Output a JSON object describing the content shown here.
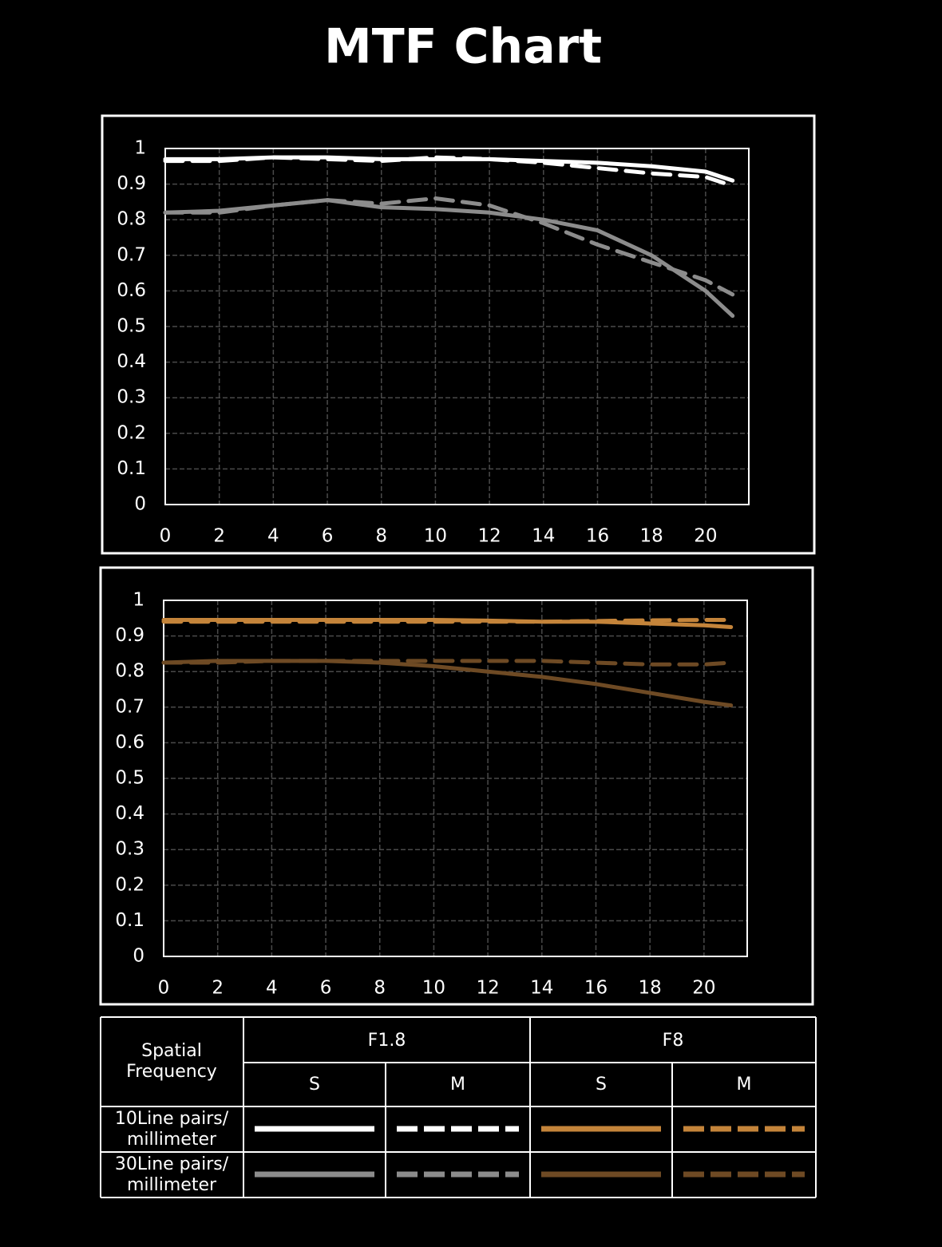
{
  "title": "MTF Chart",
  "chart_data": [
    {
      "type": "line",
      "x": [
        0,
        2,
        4,
        6,
        8,
        10,
        12,
        14,
        16,
        18,
        20,
        21
      ],
      "xlim": [
        0,
        21.6
      ],
      "ylim": [
        0,
        1
      ],
      "xticks": [
        0,
        2,
        4,
        6,
        8,
        10,
        12,
        14,
        16,
        18,
        20
      ],
      "yticks": [
        0,
        0.1,
        0.2,
        0.3,
        0.4,
        0.5,
        0.6,
        0.7,
        0.8,
        0.9,
        1
      ],
      "grid": true,
      "series": [
        {
          "color": "#ffffff",
          "dash": false,
          "values": [
            0.97,
            0.97,
            0.975,
            0.975,
            0.97,
            0.97,
            0.97,
            0.965,
            0.96,
            0.95,
            0.935,
            0.91
          ]
        },
        {
          "color": "#ffffff",
          "dash": true,
          "values": [
            0.965,
            0.965,
            0.975,
            0.97,
            0.965,
            0.975,
            0.97,
            0.96,
            0.945,
            0.93,
            0.92,
            0.895
          ]
        },
        {
          "color": "#8c8c8c",
          "dash": false,
          "values": [
            0.82,
            0.825,
            0.84,
            0.855,
            0.835,
            0.83,
            0.82,
            0.8,
            0.77,
            0.7,
            0.6,
            0.53
          ]
        },
        {
          "color": "#8c8c8c",
          "dash": true,
          "values": [
            0.82,
            0.82,
            0.84,
            0.855,
            0.845,
            0.86,
            0.84,
            0.79,
            0.73,
            0.68,
            0.63,
            0.59
          ]
        }
      ]
    },
    {
      "type": "line",
      "x": [
        0,
        2,
        4,
        6,
        8,
        10,
        12,
        14,
        16,
        18,
        20,
        21
      ],
      "xlim": [
        0,
        21.6
      ],
      "ylim": [
        0,
        1
      ],
      "xticks": [
        0,
        2,
        4,
        6,
        8,
        10,
        12,
        14,
        16,
        18,
        20
      ],
      "yticks": [
        0,
        0.1,
        0.2,
        0.3,
        0.4,
        0.5,
        0.6,
        0.7,
        0.8,
        0.9,
        1
      ],
      "grid": true,
      "series": [
        {
          "color": "#c4843a",
          "dash": false,
          "values": [
            0.945,
            0.945,
            0.945,
            0.945,
            0.945,
            0.945,
            0.943,
            0.94,
            0.94,
            0.935,
            0.93,
            0.925
          ]
        },
        {
          "color": "#c4843a",
          "dash": true,
          "values": [
            0.94,
            0.94,
            0.94,
            0.94,
            0.94,
            0.94,
            0.94,
            0.94,
            0.942,
            0.944,
            0.945,
            0.945
          ]
        },
        {
          "color": "#6e4a24",
          "dash": false,
          "values": [
            0.825,
            0.83,
            0.83,
            0.83,
            0.825,
            0.815,
            0.8,
            0.785,
            0.765,
            0.74,
            0.715,
            0.705
          ]
        },
        {
          "color": "#6e4a24",
          "dash": true,
          "values": [
            0.825,
            0.825,
            0.83,
            0.83,
            0.83,
            0.83,
            0.83,
            0.83,
            0.825,
            0.82,
            0.82,
            0.825
          ]
        }
      ]
    }
  ],
  "legend_table": {
    "corner": [
      "Spatial",
      "Frequency"
    ],
    "groups": [
      "F1.8",
      "F8"
    ],
    "subheaders": [
      "S",
      "M",
      "S",
      "M"
    ],
    "rows": [
      {
        "label": [
          "10Line pairs/",
          "millimeter"
        ]
      },
      {
        "label": [
          "30Line pairs/",
          "millimeter"
        ]
      }
    ]
  }
}
